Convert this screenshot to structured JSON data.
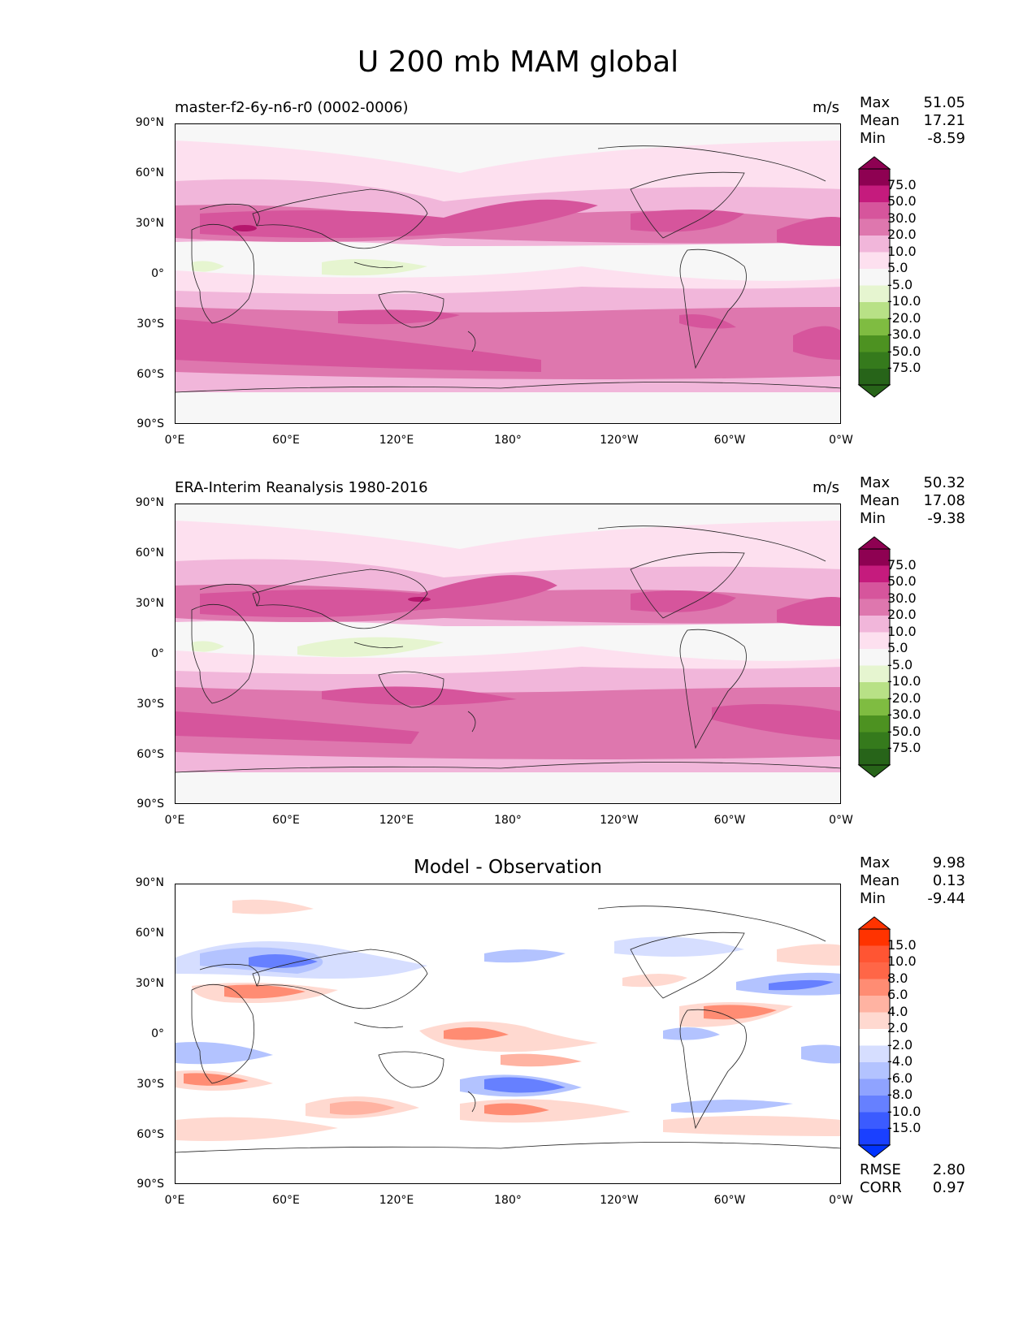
{
  "figure_title": "U 200 mb MAM global",
  "panels": [
    {
      "left_title": "master-f2-6y-n6-r0 (0002-0006)",
      "units": "m/s",
      "stats": {
        "max_label": "Max",
        "max": "51.05",
        "mean_label": "Mean",
        "mean": "17.21",
        "min_label": "Min",
        "min": "-8.59"
      },
      "colorbar_labels": [
        "75.0",
        "50.0",
        "30.0",
        "20.0",
        "10.0",
        "5.0",
        "-5.0",
        "-10.0",
        "-20.0",
        "-30.0",
        "-50.0",
        "-75.0"
      ]
    },
    {
      "left_title": "ERA-Interim Reanalysis 1980-2016",
      "units": "m/s",
      "stats": {
        "max_label": "Max",
        "max": "50.32",
        "mean_label": "Mean",
        "mean": "17.08",
        "min_label": "Min",
        "min": "-9.38"
      },
      "colorbar_labels": [
        "75.0",
        "50.0",
        "30.0",
        "20.0",
        "10.0",
        "5.0",
        "-5.0",
        "-10.0",
        "-20.0",
        "-30.0",
        "-50.0",
        "-75.0"
      ]
    },
    {
      "center_title": "Model - Observation",
      "stats": {
        "max_label": "Max",
        "max": "9.98",
        "mean_label": "Mean",
        "mean": "0.13",
        "min_label": "Min",
        "min": "-9.44"
      },
      "colorbar_labels": [
        "15.0",
        "10.0",
        "8.0",
        "6.0",
        "4.0",
        "2.0",
        "-2.0",
        "-4.0",
        "-6.0",
        "-8.0",
        "-10.0",
        "-15.0"
      ],
      "rmse_label": "RMSE",
      "rmse": "2.80",
      "corr_label": "CORR",
      "corr": "0.97"
    }
  ],
  "axes": {
    "y_ticks": [
      "90°N",
      "60°N",
      "30°N",
      "0°",
      "30°S",
      "60°S",
      "90°S"
    ],
    "x_ticks": [
      "0°E",
      "60°E",
      "120°E",
      "180°",
      "120°W",
      "60°W",
      "0°W"
    ]
  },
  "colors": {
    "field_scale": [
      "#276419",
      "#4d9221",
      "#7fbc41",
      "#b8e186",
      "#e6f5d0",
      "#f7f7f7",
      "#fde0ef",
      "#f1b6da",
      "#de77ae",
      "#c51b7d",
      "#8e0152"
    ],
    "diff_scale": [
      "#0033ff",
      "#3b5bff",
      "#6680ff",
      "#8fa3ff",
      "#b3c3ff",
      "#d6deff",
      "#ffffff",
      "#ffd9d0",
      "#ffb3a2",
      "#ff8c73",
      "#ff6647",
      "#ff3300"
    ]
  },
  "chart_data": [
    {
      "type": "heatmap",
      "title": "master-f2-6y-n6-r0 (0002-0006)",
      "units": "m/s",
      "x_ticks": [
        "0°E",
        "60°E",
        "120°E",
        "180°",
        "120°W",
        "60°W",
        "0°W"
      ],
      "y_ticks": [
        "90°N",
        "60°N",
        "30°N",
        "0°",
        "30°S",
        "60°S",
        "90°S"
      ],
      "levels": [
        -75,
        -50,
        -30,
        -20,
        -10,
        -5,
        5,
        10,
        20,
        30,
        50,
        75
      ],
      "max": 51.05,
      "mean": 17.21,
      "min": -8.59
    },
    {
      "type": "heatmap",
      "title": "ERA-Interim Reanalysis 1980-2016",
      "units": "m/s",
      "x_ticks": [
        "0°E",
        "60°E",
        "120°E",
        "180°",
        "120°W",
        "60°W",
        "0°W"
      ],
      "y_ticks": [
        "90°N",
        "60°N",
        "30°N",
        "0°",
        "30°S",
        "60°S",
        "90°S"
      ],
      "levels": [
        -75,
        -50,
        -30,
        -20,
        -10,
        -5,
        5,
        10,
        20,
        30,
        50,
        75
      ],
      "max": 50.32,
      "mean": 17.08,
      "min": -9.38
    },
    {
      "type": "heatmap",
      "title": "Model - Observation",
      "x_ticks": [
        "0°E",
        "60°E",
        "120°E",
        "180°",
        "120°W",
        "60°W",
        "0°W"
      ],
      "y_ticks": [
        "90°N",
        "60°N",
        "30°N",
        "0°",
        "30°S",
        "60°S",
        "90°S"
      ],
      "levels": [
        -15,
        -10,
        -8,
        -6,
        -4,
        -2,
        2,
        4,
        6,
        8,
        10,
        15
      ],
      "max": 9.98,
      "mean": 0.13,
      "min": -9.44,
      "rmse": 2.8,
      "corr": 0.97
    }
  ]
}
